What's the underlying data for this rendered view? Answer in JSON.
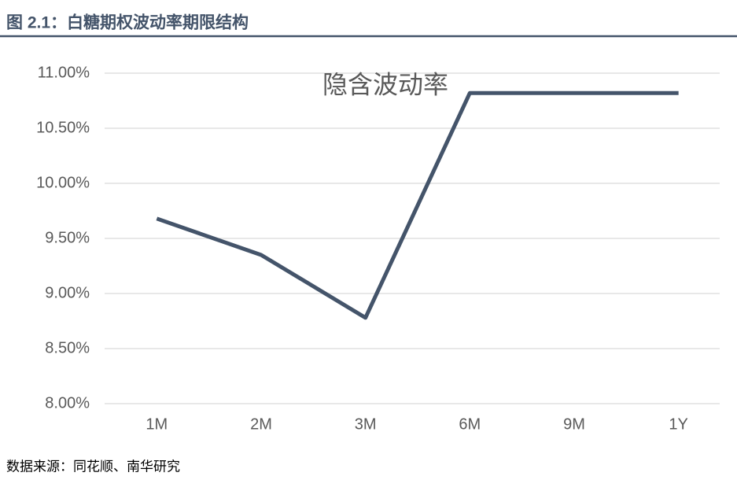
{
  "chart_data": {
    "type": "line",
    "title": "图 2.1：白糖期权波动率期限结构",
    "source": "数据来源：同花顺、南华研究",
    "categories": [
      "1M",
      "2M",
      "3M",
      "6M",
      "9M",
      "1Y"
    ],
    "series": [
      {
        "name": "隐含波动率",
        "color": "#44546a",
        "values": [
          9.68,
          9.35,
          8.78,
          10.82,
          10.82,
          10.82
        ]
      }
    ],
    "ylim": [
      8,
      11
    ],
    "yticks": [
      {
        "value": 8,
        "label": "8.00%"
      },
      {
        "value": 8.5,
        "label": "8.50%"
      },
      {
        "value": 9,
        "label": "9.00%"
      },
      {
        "value": 9.5,
        "label": "9.50%"
      },
      {
        "value": 10,
        "label": "10.00%"
      },
      {
        "value": 10.5,
        "label": "10.50%"
      },
      {
        "value": 11,
        "label": "11.00%"
      }
    ],
    "grid": true
  }
}
